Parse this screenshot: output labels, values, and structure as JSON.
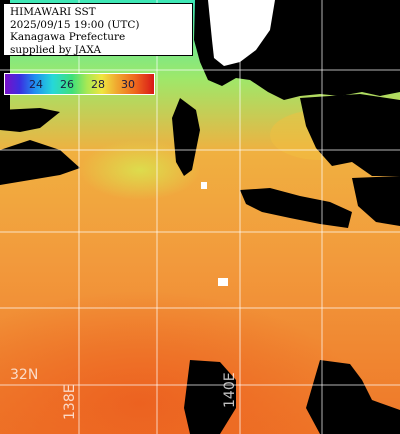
{
  "title": {
    "line1": "HIMAWARI SST",
    "line2": "2025/09/15 19:00 (UTC)",
    "line3": "Kanagawa Prefecture",
    "line4": "supplied by JAXA"
  },
  "legend": {
    "ticks": [
      "24",
      "26",
      "28",
      "30"
    ]
  },
  "grid_labels": {
    "lat": "32N",
    "lon1": "138E",
    "lon2": "140E"
  },
  "colors": {
    "land": "#000000",
    "coast": "#ffffff",
    "grid": "#ffffff",
    "cold": "#3fe0a0",
    "warm": "#ef7a2a"
  }
}
